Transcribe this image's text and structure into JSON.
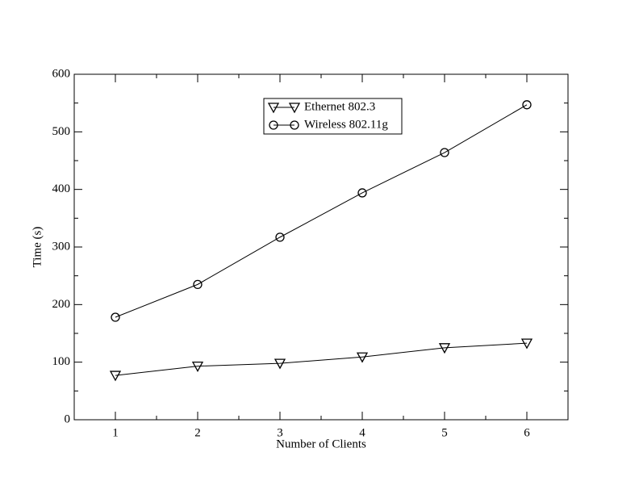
{
  "chart_data": {
    "type": "line",
    "x_label": "Number of Clients",
    "y_label": "Time (s)",
    "x": [
      1,
      2,
      3,
      4,
      5,
      6
    ],
    "series": [
      {
        "name": "Ethernet 802.3",
        "color": "#000000",
        "marker": "triangle-down",
        "values": [
          77,
          93,
          98,
          109,
          125,
          133
        ]
      },
      {
        "name": "Wireless 802.11g",
        "color": "#000000",
        "marker": "circle",
        "values": [
          178,
          235,
          317,
          394,
          464,
          547
        ]
      }
    ],
    "xlim": [
      0.5,
      6.5
    ],
    "xticks": [
      1,
      2,
      3,
      4,
      5,
      6
    ],
    "ylim": [
      0,
      600
    ],
    "yticks": [
      0,
      100,
      200,
      300,
      400,
      500,
      600
    ],
    "grid": false,
    "legend": "top-center"
  }
}
